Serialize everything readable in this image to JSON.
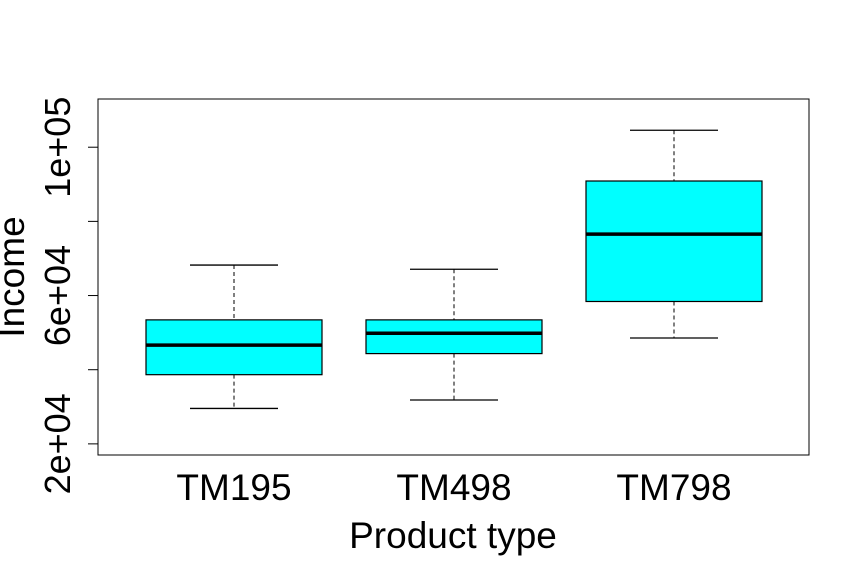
{
  "chart_data": {
    "type": "boxplot",
    "title": "",
    "xlabel": "Product type",
    "ylabel": "Income",
    "categories": [
      "TM195",
      "TM498",
      "TM798"
    ],
    "boxes": [
      {
        "category": "TM195",
        "whisker_low": 29562,
        "q1": 38658,
        "median": 46617,
        "q3": 53439,
        "whisker_high": 68220
      },
      {
        "category": "TM498",
        "whisker_low": 31836,
        "q1": 44343,
        "median": 49836,
        "q3": 53439,
        "whisker_high": 67083
      },
      {
        "category": "TM798",
        "whisker_low": 48556,
        "q1": 58395,
        "median": 76568,
        "q3": 90886,
        "whisker_high": 104581
      }
    ],
    "yticks": [
      20000,
      40000,
      60000,
      80000,
      100000
    ],
    "ytick_labels": [
      "2e+04",
      "",
      "6e+04",
      "",
      "1e+05"
    ],
    "ylim": [
      17000,
      113000
    ],
    "grid": false,
    "legend": "none",
    "box_fill": "#00ffff",
    "line_color": "#000000"
  }
}
